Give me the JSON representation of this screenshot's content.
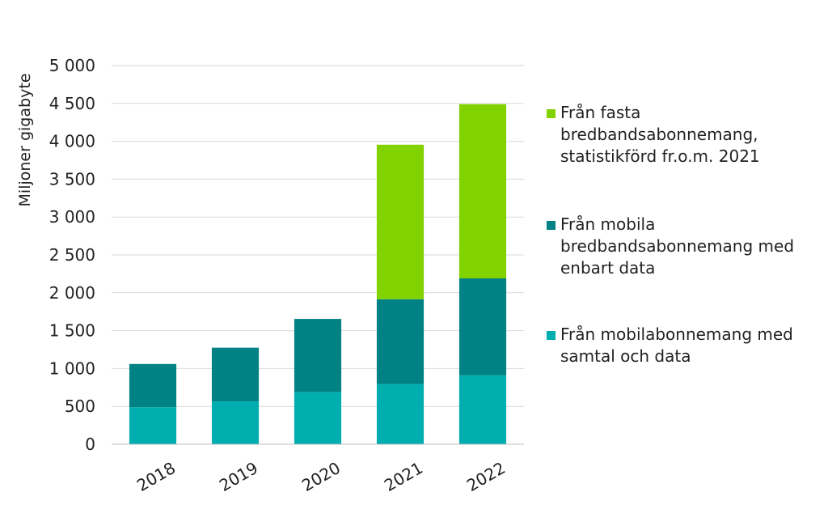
{
  "chart_data": {
    "type": "bar",
    "stacked": true,
    "categories": [
      "2018",
      "2019",
      "2020",
      "2021",
      "2022"
    ],
    "series": [
      {
        "name": "Från mobilabonnemang med samtal och data",
        "color": "#00aeb0",
        "values": [
          490,
          565,
          690,
          795,
          910
        ]
      },
      {
        "name": "Från mobila bredbandsabonnemang med enbart data",
        "color": "#008284",
        "values": [
          570,
          710,
          965,
          1120,
          1280
        ]
      },
      {
        "name": "Från fasta bredbandsabonnemang, statistikförd fr.o.m. 2021",
        "color": "#82d200",
        "values": [
          0,
          0,
          0,
          2040,
          2300
        ]
      }
    ],
    "ylabel": "Miljoner gigabyte",
    "ylim": [
      0,
      5000
    ],
    "yticks": [
      0,
      500,
      1000,
      1500,
      2000,
      2500,
      3000,
      3500,
      4000,
      4500,
      5000
    ],
    "ytick_labels": [
      "0",
      "500",
      "1 000",
      "1 500",
      "2 000",
      "2 500",
      "3 000",
      "3 500",
      "4 000",
      "4 500",
      "5 000"
    ],
    "grid": true,
    "legend_position": "right",
    "legend_order": [
      2,
      1,
      0
    ]
  }
}
